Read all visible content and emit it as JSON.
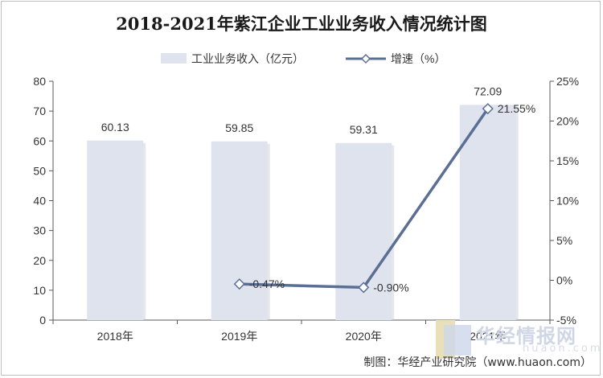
{
  "chart_data": {
    "type": "bar+line",
    "title": "2018-2021年紫江企业工业业务收入情况统计图",
    "categories": [
      "2018年",
      "2019年",
      "2020年",
      "2021年"
    ],
    "series": [
      {
        "name": "工业业务收入（亿元）",
        "type": "bar",
        "axis": "left",
        "values": [
          60.13,
          59.85,
          59.31,
          72.09
        ],
        "labels": [
          "60.13",
          "59.85",
          "59.31",
          "72.09"
        ]
      },
      {
        "name": "增速（%）",
        "type": "line",
        "axis": "right",
        "values": [
          null,
          -0.47,
          -0.9,
          21.55
        ],
        "labels": [
          "",
          "-0.47%",
          "-0.90%",
          "21.55%"
        ]
      }
    ],
    "y_left": {
      "min": 0,
      "max": 80,
      "ticks": [
        "0",
        "10",
        "20",
        "30",
        "40",
        "50",
        "60",
        "70",
        "80"
      ]
    },
    "y_right": {
      "min": -5,
      "max": 25,
      "ticks": [
        "-5%",
        "0%",
        "5%",
        "10%",
        "15%",
        "20%",
        "25%"
      ]
    },
    "legend_position": "top",
    "grid": false,
    "colors": {
      "bar": "#dfe3ee",
      "line": "#5b6f95",
      "marker_fill": "#ffffff"
    }
  },
  "credit": "制图：华经产业研究院（www.huaon.com）",
  "watermark": {
    "text": "华经情报网",
    "sub": "huaon.com"
  }
}
